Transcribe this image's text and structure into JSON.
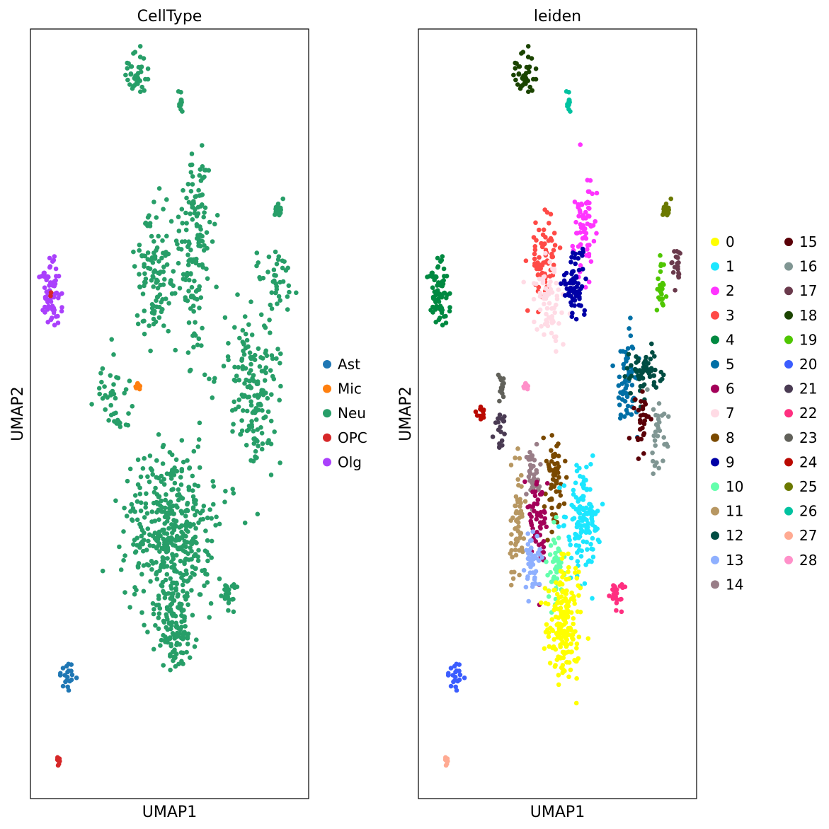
{
  "chart_data": [
    {
      "type": "scatter",
      "title": "CellType",
      "xlabel": "UMAP1",
      "ylabel": "UMAP2",
      "xlim": [
        0,
        100
      ],
      "ylim": [
        0,
        100
      ],
      "grid": false,
      "legend": "right",
      "legend_columns": 1,
      "legend_entries": [
        "Ast",
        "Mic",
        "Neu",
        "OPC",
        "Olg"
      ],
      "colors": {
        "Ast": "#1f77b4",
        "Mic": "#ff7f0e",
        "Neu": "#279e68",
        "OPC": "#d62728",
        "Olg": "#aa40fc"
      },
      "clusters": [
        {
          "label": "Neu",
          "x": 38,
          "y": 94,
          "sx": 2.0,
          "sy": 1.2,
          "n": 40
        },
        {
          "label": "Neu",
          "x": 54,
          "y": 90.3,
          "sx": 0.5,
          "sy": 0.6,
          "n": 12
        },
        {
          "label": "Neu",
          "x": 45,
          "y": 68,
          "sx": 3.5,
          "sy": 4.0,
          "n": 120
        },
        {
          "label": "Neu",
          "x": 59,
          "y": 71,
          "sx": 3.0,
          "sy": 7.0,
          "n": 150
        },
        {
          "label": "Neu",
          "x": 89,
          "y": 76.4,
          "sx": 1.0,
          "sy": 0.6,
          "n": 15
        },
        {
          "label": "Neu",
          "x": 88,
          "y": 67,
          "sx": 3.0,
          "sy": 2.5,
          "n": 40
        },
        {
          "label": "Neu",
          "x": 80,
          "y": 53,
          "sx": 5.0,
          "sy": 5.0,
          "n": 170
        },
        {
          "label": "Neu",
          "x": 30,
          "y": 52,
          "sx": 3.5,
          "sy": 3.0,
          "n": 40
        },
        {
          "label": "Neu",
          "x": 50,
          "y": 34,
          "sx": 7.5,
          "sy": 6.0,
          "n": 450
        },
        {
          "label": "Neu",
          "x": 52,
          "y": 22,
          "sx": 2.5,
          "sy": 3.0,
          "n": 100
        },
        {
          "label": "Neu",
          "x": 71,
          "y": 26.5,
          "sx": 1.5,
          "sy": 0.9,
          "n": 25
        },
        {
          "label": "Mic",
          "x": 38.5,
          "y": 53.5,
          "sx": 0.4,
          "sy": 0.3,
          "n": 8
        },
        {
          "label": "Olg",
          "x": 7.5,
          "y": 65.5,
          "sx": 1.5,
          "sy": 2.5,
          "n": 70
        },
        {
          "label": "OPC",
          "x": 7.5,
          "y": 65.5,
          "sx": 0.3,
          "sy": 0.3,
          "n": 2
        },
        {
          "label": "Ast",
          "x": 13,
          "y": 16,
          "sx": 1.5,
          "sy": 0.9,
          "n": 20
        },
        {
          "label": "OPC",
          "x": 10,
          "y": 5,
          "sx": 0.3,
          "sy": 0.4,
          "n": 8
        }
      ]
    },
    {
      "type": "scatter",
      "title": "leiden",
      "xlabel": "UMAP1",
      "ylabel": "UMAP2",
      "xlim": [
        0,
        100
      ],
      "ylim": [
        0,
        100
      ],
      "grid": false,
      "legend": "right",
      "legend_columns": 2,
      "legend_entries": [
        "0",
        "1",
        "2",
        "3",
        "4",
        "5",
        "6",
        "7",
        "8",
        "9",
        "10",
        "11",
        "12",
        "13",
        "14",
        "15",
        "16",
        "17",
        "18",
        "19",
        "20",
        "21",
        "22",
        "23",
        "24",
        "25",
        "26",
        "27",
        "28"
      ],
      "colors": {
        "0": "#ffff00",
        "1": "#1ce6ff",
        "2": "#ff34ff",
        "3": "#ff4a46",
        "4": "#008941",
        "5": "#006fa6",
        "6": "#a30059",
        "7": "#ffdbe5",
        "8": "#7a4900",
        "9": "#0000a6",
        "10": "#63ffac",
        "11": "#b79762",
        "12": "#004d43",
        "13": "#8fb0ff",
        "14": "#997d87",
        "15": "#5a0007",
        "16": "#809693",
        "17": "#6a3a4c",
        "18": "#1b4400",
        "19": "#4fc601",
        "20": "#3b5dff",
        "21": "#4a3b53",
        "22": "#ff2f80",
        "23": "#61615a",
        "24": "#ba0900",
        "25": "#6b7900",
        "26": "#00c2a0",
        "27": "#ffaa92",
        "28": "#ff90c9"
      },
      "clusters": [
        {
          "label": "18",
          "x": 38,
          "y": 94,
          "sx": 2.0,
          "sy": 1.2,
          "n": 40
        },
        {
          "label": "26",
          "x": 54,
          "y": 90.3,
          "sx": 0.5,
          "sy": 0.6,
          "n": 12
        },
        {
          "label": "2",
          "x": 59.5,
          "y": 75,
          "sx": 2.0,
          "sy": 3.0,
          "n": 70
        },
        {
          "label": "3",
          "x": 45,
          "y": 70,
          "sx": 2.5,
          "sy": 2.5,
          "n": 70
        },
        {
          "label": "7",
          "x": 47,
          "y": 64.5,
          "sx": 2.5,
          "sy": 2.5,
          "n": 70
        },
        {
          "label": "9",
          "x": 56,
          "y": 66.5,
          "sx": 2.0,
          "sy": 2.0,
          "n": 70
        },
        {
          "label": "4",
          "x": 7.5,
          "y": 65.5,
          "sx": 1.5,
          "sy": 2.5,
          "n": 70
        },
        {
          "label": "25",
          "x": 89,
          "y": 76.4,
          "sx": 1.0,
          "sy": 0.6,
          "n": 15
        },
        {
          "label": "17",
          "x": 93,
          "y": 69.5,
          "sx": 1.2,
          "sy": 1.5,
          "n": 20
        },
        {
          "label": "19",
          "x": 87,
          "y": 66.5,
          "sx": 1.0,
          "sy": 1.5,
          "n": 25
        },
        {
          "label": "5",
          "x": 75,
          "y": 54,
          "sx": 2.0,
          "sy": 3.0,
          "n": 60
        },
        {
          "label": "12",
          "x": 81,
          "y": 55.5,
          "sx": 3.0,
          "sy": 2.0,
          "n": 60
        },
        {
          "label": "15",
          "x": 80,
          "y": 48.5,
          "sx": 1.5,
          "sy": 2.0,
          "n": 30
        },
        {
          "label": "16",
          "x": 86,
          "y": 48,
          "sx": 1.5,
          "sy": 2.5,
          "n": 30
        },
        {
          "label": "23",
          "x": 30,
          "y": 53.5,
          "sx": 0.6,
          "sy": 1.2,
          "n": 15
        },
        {
          "label": "28",
          "x": 38.5,
          "y": 53.5,
          "sx": 0.4,
          "sy": 0.3,
          "n": 8
        },
        {
          "label": "24",
          "x": 23,
          "y": 50.3,
          "sx": 1.0,
          "sy": 0.6,
          "n": 12
        },
        {
          "label": "21",
          "x": 29.5,
          "y": 48,
          "sx": 1.2,
          "sy": 1.2,
          "n": 18
        },
        {
          "label": "14",
          "x": 41,
          "y": 41.5,
          "sx": 1.5,
          "sy": 2.0,
          "n": 40
        },
        {
          "label": "8",
          "x": 48.5,
          "y": 41.5,
          "sx": 1.5,
          "sy": 3.0,
          "n": 60
        },
        {
          "label": "1",
          "x": 59,
          "y": 36.5,
          "sx": 3.0,
          "sy": 3.5,
          "n": 130
        },
        {
          "label": "11",
          "x": 35.5,
          "y": 36,
          "sx": 1.2,
          "sy": 3.5,
          "n": 60
        },
        {
          "label": "6",
          "x": 43,
          "y": 36,
          "sx": 2.0,
          "sy": 3.0,
          "n": 60
        },
        {
          "label": "10",
          "x": 49.5,
          "y": 30,
          "sx": 1.5,
          "sy": 2.5,
          "n": 50
        },
        {
          "label": "13",
          "x": 41,
          "y": 30.5,
          "sx": 1.5,
          "sy": 2.0,
          "n": 45
        },
        {
          "label": "0",
          "x": 52,
          "y": 23,
          "sx": 3.0,
          "sy": 3.5,
          "n": 190
        },
        {
          "label": "22",
          "x": 71,
          "y": 26.5,
          "sx": 1.5,
          "sy": 0.9,
          "n": 25
        },
        {
          "label": "20",
          "x": 13,
          "y": 16,
          "sx": 1.5,
          "sy": 0.9,
          "n": 20
        },
        {
          "label": "27",
          "x": 10,
          "y": 5,
          "sx": 0.3,
          "sy": 0.4,
          "n": 8
        }
      ]
    }
  ]
}
